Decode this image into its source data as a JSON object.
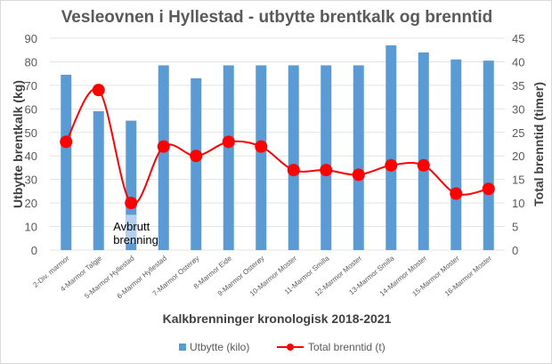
{
  "chart_data": {
    "type": "bar+line",
    "title": "Vesleovnen i Hyllestad - utbytte brentkalk og brenntid",
    "xlabel": "Kalkbrenninger kronologisk 2018-2021",
    "ylabel": "Utbytte brentkalk (kg)",
    "y2label": "Total brenntid (timer)",
    "ylim": [
      0,
      90
    ],
    "yticks": [
      0,
      10,
      20,
      30,
      40,
      50,
      60,
      70,
      80,
      90
    ],
    "y2lim": [
      0,
      45
    ],
    "y2ticks": [
      0,
      5,
      10,
      15,
      20,
      25,
      30,
      35,
      40,
      45
    ],
    "grid": true,
    "legend": "bottom",
    "categories": [
      "2-Div. marmor",
      "4-Marmor Talgje",
      "5-Marmor Hyllestad",
      "6-Marmor Hyllestad",
      "7-Marmor Osterøy",
      "8-Marmor Eide",
      "9-Marmor Osterøy",
      "10-Marmor Moster",
      "11-Marmor Smilla",
      "12-Marmor Moster",
      "13-Marmor Smilla",
      "14-Marmor Moster",
      "15-Marmor Moster",
      "16-Marmor Moster"
    ],
    "series": [
      {
        "name": "Utbytte (kilo)",
        "type": "bar",
        "axis": "left",
        "color": "#5b9bd5",
        "values": [
          74.5,
          59,
          55,
          78.5,
          73,
          78.5,
          78.5,
          78.5,
          78.5,
          78.5,
          87,
          84,
          81,
          80.5
        ]
      },
      {
        "name": "Total brenntid (t)",
        "type": "line",
        "axis": "right",
        "color": "#ff0000",
        "values": [
          23,
          34,
          10,
          22,
          20,
          23,
          22,
          17,
          17,
          16,
          18,
          18,
          12,
          13
        ]
      }
    ],
    "annotation": {
      "text1": "Avbrutt",
      "text2": "brenning",
      "category_index": 2
    }
  }
}
